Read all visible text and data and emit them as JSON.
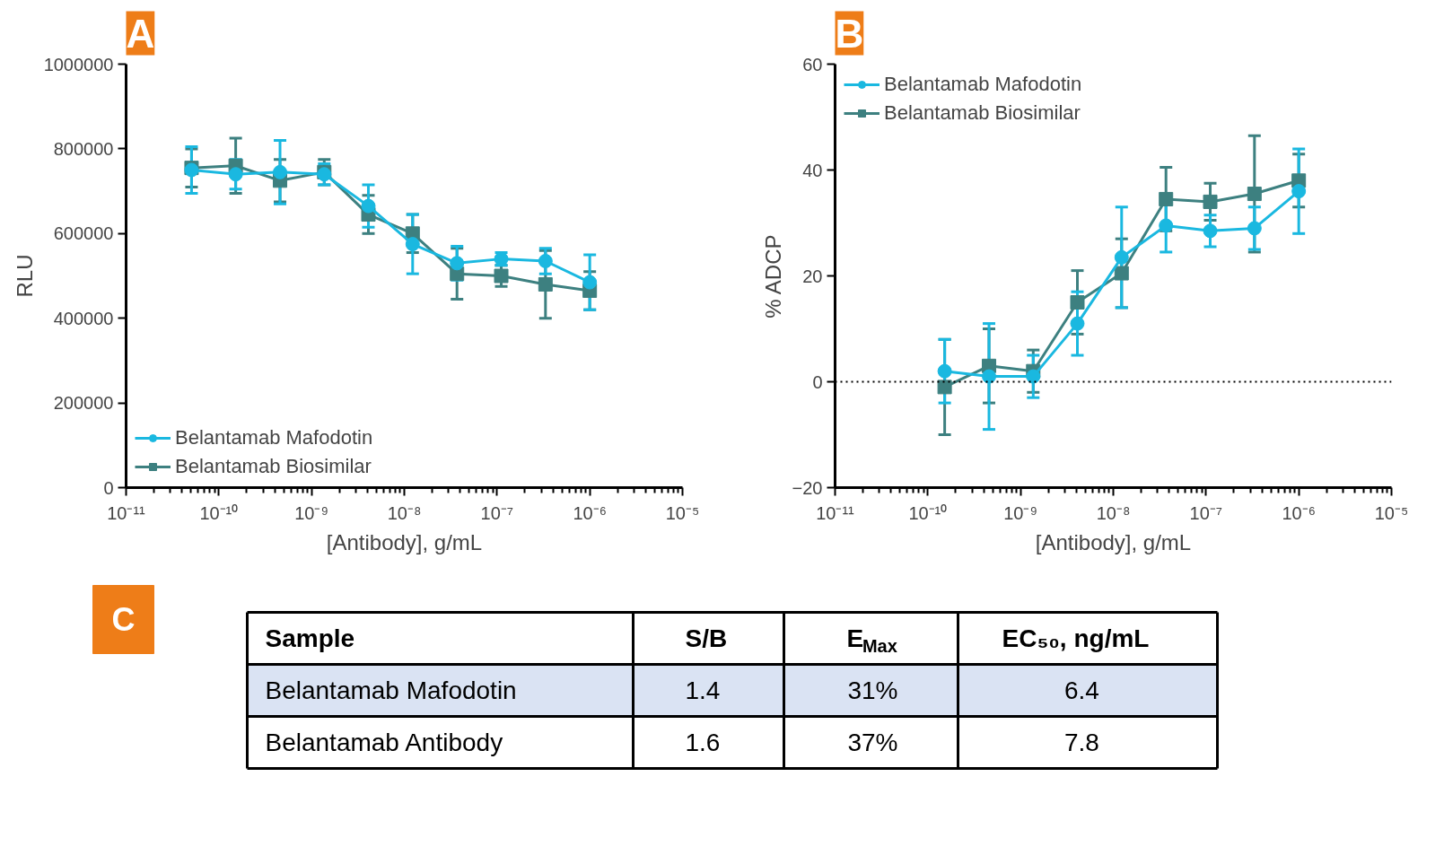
{
  "chart_data": [
    {
      "type": "line",
      "title": "A",
      "xlabel": "[Antibody], g/mL",
      "ylabel": "RLU",
      "log": "x",
      "xlim": [
        1e-11,
        1e-05
      ],
      "xticks": [
        {
          "value": 1e-11,
          "label": "10⁻¹¹"
        },
        {
          "value": 1e-10,
          "label": "10⁻¹⁰"
        },
        {
          "value": 1e-09,
          "label": "10⁻⁹"
        },
        {
          "value": 1e-08,
          "label": "10⁻⁸"
        },
        {
          "value": 1e-07,
          "label": "10⁻⁷"
        },
        {
          "value": 1e-06,
          "label": "10⁻⁶"
        },
        {
          "value": 1e-05,
          "label": "10⁻⁵"
        }
      ],
      "ylim": [
        0,
        1000000
      ],
      "yticks": [
        0,
        200000,
        400000,
        600000,
        800000,
        1000000
      ],
      "grid": false,
      "legend": "bottom left",
      "x": [
        5.08e-11,
        1.52e-10,
        4.57e-10,
        1.37e-09,
        4.1e-09,
        1.23e-08,
        3.7e-08,
        1.11e-07,
        3.33e-07,
        1e-06
      ],
      "series": [
        {
          "name": "Belantamab Mafodotin",
          "color": "#1ab8e0",
          "marker": "circle",
          "values": [
            750000,
            740000,
            745000,
            740000,
            665000,
            575000,
            530000,
            540000,
            535000,
            485000
          ],
          "errors": [
            55000,
            35000,
            75000,
            25000,
            50000,
            70000,
            40000,
            15000,
            30000,
            65000
          ]
        },
        {
          "name": "Belantamab Biosimilar",
          "color": "#3d8080",
          "marker": "square",
          "values": [
            755000,
            760000,
            725000,
            745000,
            645000,
            600000,
            505000,
            500000,
            480000,
            465000
          ],
          "errors": [
            45000,
            65000,
            50000,
            30000,
            45000,
            45000,
            60000,
            25000,
            80000,
            45000
          ]
        }
      ]
    },
    {
      "type": "line",
      "title": "B",
      "xlabel": "[Antibody], g/mL",
      "ylabel": "% ADCP",
      "log": "x",
      "xlim": [
        1e-11,
        1e-05
      ],
      "xticks": [
        {
          "value": 1e-11,
          "label": "10⁻¹¹"
        },
        {
          "value": 1e-10,
          "label": "10⁻¹⁰"
        },
        {
          "value": 1e-09,
          "label": "10⁻⁹"
        },
        {
          "value": 1e-08,
          "label": "10⁻⁸"
        },
        {
          "value": 1e-07,
          "label": "10⁻⁷"
        },
        {
          "value": 1e-06,
          "label": "10⁻⁶"
        },
        {
          "value": 1e-05,
          "label": "10⁻⁵"
        }
      ],
      "ylim": [
        -20,
        60
      ],
      "yticks": [
        -20,
        0,
        20,
        40,
        60
      ],
      "grid": false,
      "legend": "top left",
      "ref_lines": [
        {
          "axis": "y",
          "value": 0,
          "line_style": "dotted",
          "color": "#000000"
        }
      ],
      "x": [
        1.52e-10,
        4.57e-10,
        1.37e-09,
        4.1e-09,
        1.23e-08,
        3.7e-08,
        1.11e-07,
        3.33e-07,
        1e-06
      ],
      "series": [
        {
          "name": "Belantamab Mafodotin",
          "color": "#1ab8e0",
          "marker": "circle",
          "values": [
            2,
            1,
            1,
            11,
            23.5,
            29.5,
            28.5,
            29,
            36
          ],
          "errors": [
            6,
            10,
            4,
            6,
            9.5,
            5,
            3,
            4,
            8
          ]
        },
        {
          "name": "Belantamab Biosimilar",
          "color": "#3d8080",
          "marker": "square",
          "values": [
            -1,
            3,
            2,
            15,
            20.5,
            34.5,
            34,
            35.5,
            38
          ],
          "errors": [
            9,
            7,
            4,
            6,
            6.5,
            6,
            3.5,
            11,
            5
          ]
        }
      ]
    },
    {
      "type": "other",
      "title": "C",
      "ylabel": "Sample",
      "categories": [
        "S/B",
        "E$_{Max}$",
        "EC₅₀, ng/mL"
      ],
      "y_categories": [
        "Belantamab Mafodotin",
        "Belantamab Antibody"
      ],
      "cell_labels": [
        [
          "1.4",
          "31%",
          "6.4"
        ],
        [
          "1.6",
          "37%",
          "7.8"
        ]
      ]
    }
  ]
}
